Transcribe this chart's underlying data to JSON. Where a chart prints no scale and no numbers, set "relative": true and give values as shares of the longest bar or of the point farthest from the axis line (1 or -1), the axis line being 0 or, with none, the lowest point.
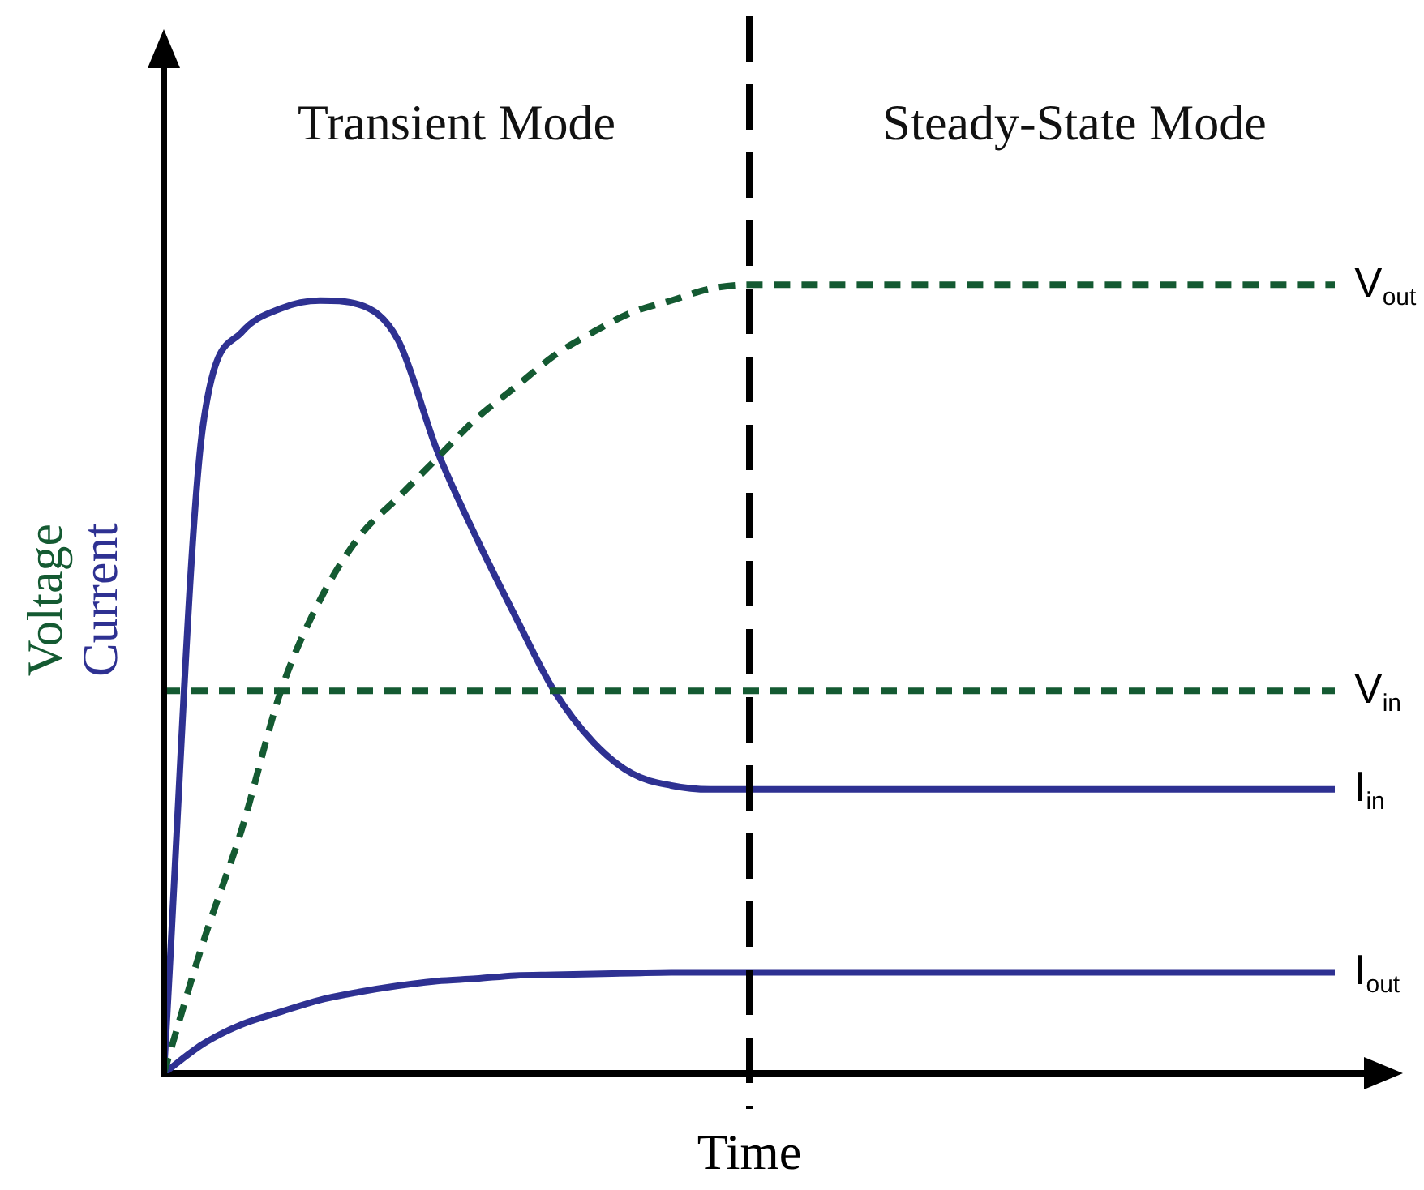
{
  "chart_data": {
    "type": "line",
    "relative": true,
    "xlabel": "Time",
    "ylabel": "Voltage\nCurrent",
    "annotations": [
      "Transient Mode",
      "Steady-State Mode"
    ],
    "categories": [
      null,
      null,
      null,
      null,
      null,
      null,
      null,
      null,
      null,
      null,
      null,
      null,
      null,
      null,
      null,
      null,
      null,
      null,
      null,
      null,
      null,
      null,
      null,
      null,
      null,
      null,
      null,
      null,
      null,
      null,
      null
    ],
    "series": [
      {
        "name": "V$_{out}$",
        "color": "#145a32",
        "line_style": "dashed",
        "values": [
          0,
          0.165,
          0.31,
          0.485,
          0.6,
          0.68,
          0.73,
          0.78,
          0.83,
          0.87,
          0.91,
          0.94,
          0.965,
          0.98,
          0.995,
          1,
          1,
          1,
          1,
          1,
          1,
          1,
          1,
          1,
          1,
          1,
          1,
          1,
          1,
          1,
          1
        ]
      },
      {
        "name": "V$_{in}$",
        "color": "#145a32",
        "line_style": "dashed",
        "values": [
          0.485,
          0.485,
          0.485,
          0.485,
          0.485,
          0.485,
          0.485,
          0.485,
          0.485,
          0.485,
          0.485,
          0.485,
          0.485,
          0.485,
          0.485,
          0.485,
          0.485,
          0.485,
          0.485,
          0.485,
          0.485,
          0.485,
          0.485,
          0.485,
          0.485,
          0.485,
          0.485,
          0.485,
          0.485,
          0.485,
          0.485
        ]
      },
      {
        "name": "I$_{in}$",
        "color": "#2e3192",
        "line_style": "solid",
        "values": [
          0,
          0.82,
          0.94,
          0.97,
          0.98,
          0.975,
          0.93,
          0.79,
          0.68,
          0.58,
          0.485,
          0.42,
          0.38,
          0.365,
          0.36,
          0.36,
          0.36,
          0.36,
          0.36,
          0.36,
          0.36,
          0.36,
          0.36,
          0.36,
          0.36,
          0.36,
          0.36,
          0.36,
          0.36,
          0.36,
          0.36
        ]
      },
      {
        "name": "I$_{out}$",
        "color": "#2e3192",
        "line_style": "solid",
        "values": [
          0,
          0.037,
          0.062,
          0.078,
          0.093,
          0.103,
          0.111,
          0.117,
          0.12,
          0.124,
          0.125,
          0.126,
          0.127,
          0.128,
          0.128,
          0.128,
          0.128,
          0.128,
          0.128,
          0.128,
          0.128,
          0.128,
          0.128,
          0.128,
          0.128,
          0.128,
          0.128,
          0.128,
          0.128,
          0.128,
          0.128
        ]
      }
    ],
    "grid": false,
    "legend": false,
    "marker": "none",
    "tick_labels": false
  }
}
